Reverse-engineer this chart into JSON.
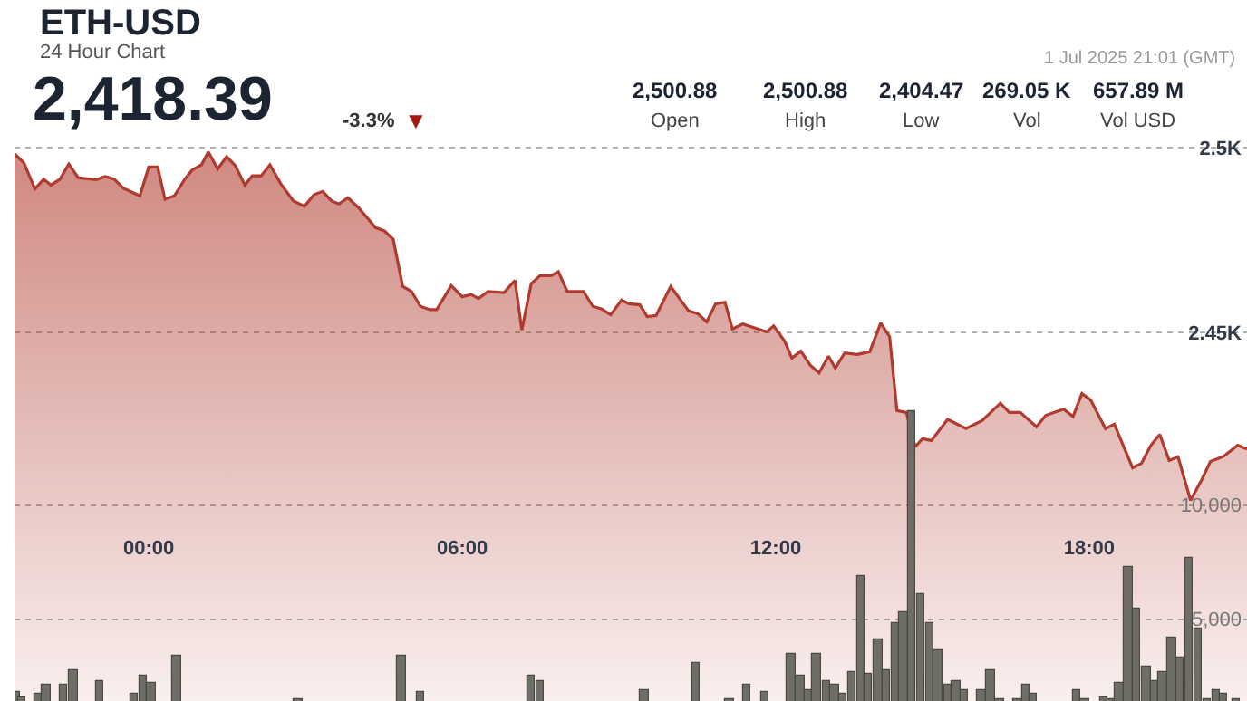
{
  "chart_data": {
    "type": "area",
    "title": "ETH-USD",
    "subtitle": "24 Hour Chart",
    "annotations": [
      "2,418.39",
      "-3.3%",
      "▼",
      "1 Jul 2025 21:01 (GMT)",
      "2,500.88",
      "Open",
      "2,500.88",
      "High",
      "2,404.47",
      "Low",
      "269.05 K",
      "Vol",
      "657.89 M",
      "Vol USD"
    ],
    "xlim": [
      -2.57,
      21.02
    ],
    "xticks": [
      {
        "value": 0,
        "label": "00:00"
      },
      {
        "value": 6,
        "label": "06:00"
      },
      {
        "value": 12,
        "label": "12:00"
      },
      {
        "value": 18,
        "label": "18:00"
      }
    ],
    "ylim": [
      2350.2,
      2539.9
    ],
    "yticks": [
      {
        "value": 2500,
        "label": "2.5K"
      },
      {
        "value": 2450,
        "label": "2.45K"
      }
    ],
    "y2lim": [
      1413,
      32141
    ],
    "y2ticks": [
      {
        "value": 10000,
        "label": "10,000"
      },
      {
        "value": 5000,
        "label": "5,000"
      }
    ],
    "grid": "y",
    "series": [
      {
        "color": "#b03a2e",
        "x": [
          -2.57,
          -2.39,
          -2.18,
          -2.01,
          -1.87,
          -1.7,
          -1.53,
          -1.35,
          -1.01,
          -0.83,
          -0.66,
          -0.49,
          -0.17,
          0,
          0.17,
          0.31,
          0.49,
          0.69,
          0.83,
          1.01,
          1.14,
          1.32,
          1.49,
          1.66,
          1.84,
          1.98,
          2.15,
          2.32,
          2.53,
          2.77,
          2.98,
          3.16,
          3.33,
          3.5,
          3.64,
          3.81,
          4.02,
          4.34,
          4.51,
          4.68,
          4.86,
          5.03,
          5.2,
          5.38,
          5.51,
          5.79,
          6.0,
          6.17,
          6.31,
          6.49,
          6.8,
          7.01,
          7.14,
          7.32,
          7.49,
          7.7,
          7.84,
          8.01,
          8.32,
          8.5,
          8.67,
          8.84,
          9.05,
          9.19,
          9.4,
          9.54,
          9.71,
          9.99,
          10.33,
          10.51,
          10.68,
          10.85,
          11.03,
          11.17,
          11.37,
          11.83,
          11.96,
          12.17,
          12.31,
          12.48,
          12.66,
          12.83,
          13.01,
          13.14,
          13.32,
          13.56,
          13.8,
          14.01,
          14.18,
          14.32,
          14.5,
          14.67,
          14.81,
          14.98,
          15.29,
          15.64,
          15.95,
          16.3,
          16.47,
          16.68,
          16.99,
          17.17,
          17.51,
          17.69,
          17.86,
          18.03,
          18.31,
          18.48,
          18.83,
          19.0,
          19.18,
          19.35,
          19.53,
          19.7,
          19.94,
          20.15,
          20.32,
          20.57,
          20.84,
          21.02
        ],
        "values": [
          2498.3,
          2495.8,
          2488.8,
          2491.4,
          2489.8,
          2491.4,
          2495.5,
          2491.8,
          2491.3,
          2492.1,
          2491.4,
          2489.0,
          2486.9,
          2494.7,
          2494.7,
          2486.0,
          2486.9,
          2491.4,
          2493.9,
          2495.3,
          2498.8,
          2494.2,
          2497.5,
          2495.0,
          2489.8,
          2492.3,
          2492.3,
          2495.3,
          2490.1,
          2485.5,
          2484.1,
          2487.2,
          2488.1,
          2485.5,
          2484.7,
          2486.4,
          2483.6,
          2478.3,
          2477.4,
          2475.1,
          2462.4,
          2461.0,
          2457.0,
          2456.1,
          2456.1,
          2462.6,
          2459.6,
          2460.2,
          2459.1,
          2461.0,
          2460.7,
          2464.0,
          2450.6,
          2463.1,
          2465.3,
          2465.3,
          2466.4,
          2461.0,
          2461.0,
          2457.0,
          2456.3,
          2454.7,
          2458.7,
          2457.7,
          2457.4,
          2454.2,
          2454.5,
          2462.4,
          2455.8,
          2455.0,
          2452.8,
          2457.7,
          2458.1,
          2450.9,
          2452.2,
          2450.1,
          2451.7,
          2447.6,
          2443.0,
          2444.9,
          2441.1,
          2439.0,
          2443.5,
          2440.3,
          2444.4,
          2444.0,
          2444.7,
          2452.5,
          2448.8,
          2428.8,
          2428.3,
          2419.0,
          2421.2,
          2420.7,
          2426.4,
          2423.9,
          2426.1,
          2430.8,
          2428.3,
          2428.3,
          2424.4,
          2427.5,
          2429.2,
          2427.2,
          2433.4,
          2431.6,
          2423.9,
          2425.1,
          2413.3,
          2414.5,
          2419.4,
          2422.3,
          2415.3,
          2416.3,
          2404.5,
          2410.0,
          2415.0,
          2416.4,
          2419.4,
          2418.4
        ]
      },
      {
        "type": "bar",
        "axis": "y2",
        "color": "#6e6e66",
        "x": [
          -2.54,
          -2.43,
          -2.11,
          -1.96,
          -1.63,
          -1.44,
          -0.94,
          -0.29,
          -0.11,
          0.05,
          0.53,
          2.86,
          4.84,
          5.19,
          7.32,
          7.5,
          9.48,
          10.47,
          11.12,
          11.45,
          11.79,
          12.29,
          12.47,
          12.63,
          12.78,
          12.97,
          13.13,
          13.28,
          13.46,
          13.62,
          13.78,
          13.96,
          14.11,
          14.3,
          14.45,
          14.6,
          14.77,
          14.95,
          15.1,
          15.29,
          15.45,
          15.61,
          15.94,
          16.11,
          16.29,
          16.63,
          16.78,
          16.93,
          17.77,
          17.92,
          18.27,
          18.42,
          18.57,
          18.75,
          18.91,
          19.09,
          19.24,
          19.41,
          19.58,
          19.74,
          19.91,
          20.08,
          20.25,
          20.43,
          20.58,
          20.81
        ],
        "values": [
          1800,
          1600,
          1700,
          2100,
          2100,
          2800,
          2300,
          1700,
          2500,
          2200,
          3400,
          1500,
          3400,
          1800,
          2500,
          2300,
          1900,
          3100,
          1500,
          2100,
          1800,
          3500,
          2500,
          1900,
          3500,
          2300,
          2100,
          1700,
          2700,
          6900,
          2600,
          4100,
          2800,
          4800,
          5300,
          14100,
          6100,
          4800,
          3600,
          2100,
          2300,
          1900,
          1900,
          2800,
          1500,
          1500,
          2100,
          1700,
          1900,
          1500,
          1600,
          1500,
          2200,
          7300,
          5500,
          2900,
          2300,
          2700,
          4200,
          3300,
          7700,
          4600,
          1500,
          1900,
          1700,
          1500
        ]
      }
    ]
  }
}
